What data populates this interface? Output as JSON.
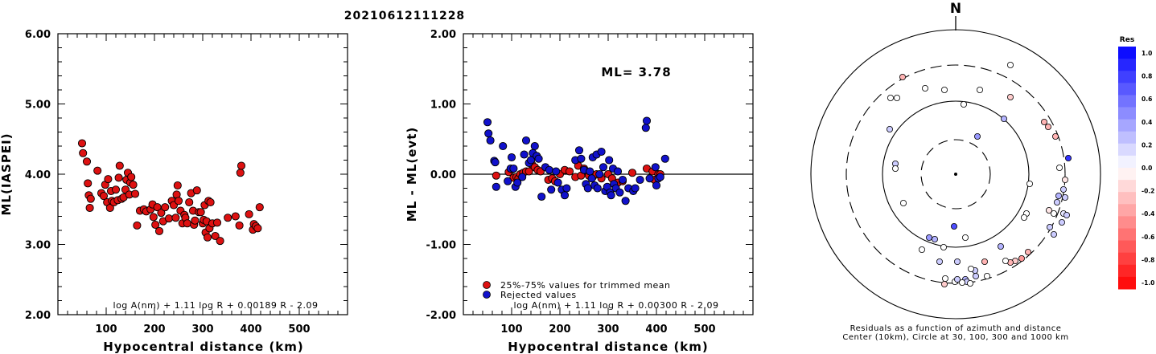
{
  "title": "20210612111228",
  "colors": {
    "accepted": "#dd1111",
    "rejected": "#1111cc",
    "polar_positive": "#0000ee",
    "polar_negative": "#ff0000"
  },
  "chart_data": [
    {
      "type": "scatter",
      "xlabel": "Hypocentral distance (km)",
      "ylabel": "ML(IASPEI)",
      "xlim": [
        0,
        600
      ],
      "ylim": [
        2.0,
        6.0
      ],
      "xticks": [
        "100",
        "200",
        "300",
        "400",
        "500"
      ],
      "yticks": [
        "2.00",
        "3.00",
        "4.00",
        "5.00",
        "6.00"
      ],
      "formula": "log A(nm) + 1.11 log R + 0.00189 R - 2.09",
      "series": [
        {
          "color": "accepted",
          "points": [
            [
              50,
              4.44
            ],
            [
              52,
              4.3
            ],
            [
              60,
              4.18
            ],
            [
              62,
              3.87
            ],
            [
              64,
              3.7
            ],
            [
              66,
              3.52
            ],
            [
              68,
              3.65
            ],
            [
              82,
              4.05
            ],
            [
              90,
              3.73
            ],
            [
              95,
              3.69
            ],
            [
              98,
              3.85
            ],
            [
              102,
              3.6
            ],
            [
              104,
              3.93
            ],
            [
              108,
              3.52
            ],
            [
              110,
              3.76
            ],
            [
              112,
              3.62
            ],
            [
              116,
              3.6
            ],
            [
              120,
              3.78
            ],
            [
              124,
              3.63
            ],
            [
              126,
              3.95
            ],
            [
              128,
              4.12
            ],
            [
              132,
              3.65
            ],
            [
              136,
              3.67
            ],
            [
              140,
              3.78
            ],
            [
              142,
              3.92
            ],
            [
              145,
              4.02
            ],
            [
              148,
              3.71
            ],
            [
              150,
              3.88
            ],
            [
              152,
              3.96
            ],
            [
              156,
              3.85
            ],
            [
              160,
              3.72
            ],
            [
              164,
              3.27
            ],
            [
              170,
              3.48
            ],
            [
              178,
              3.5
            ],
            [
              183,
              3.47
            ],
            [
              192,
              3.5
            ],
            [
              196,
              3.57
            ],
            [
              198,
              3.39
            ],
            [
              202,
              3.28
            ],
            [
              206,
              3.53
            ],
            [
              210,
              3.19
            ],
            [
              214,
              3.45
            ],
            [
              218,
              3.33
            ],
            [
              222,
              3.53
            ],
            [
              230,
              3.37
            ],
            [
              236,
              3.62
            ],
            [
              240,
              3.56
            ],
            [
              244,
              3.38
            ],
            [
              246,
              3.71
            ],
            [
              248,
              3.84
            ],
            [
              250,
              3.62
            ],
            [
              254,
              3.48
            ],
            [
              258,
              3.3
            ],
            [
              262,
              3.42
            ],
            [
              264,
              3.38
            ],
            [
              268,
              3.3
            ],
            [
              272,
              3.6
            ],
            [
              276,
              3.73
            ],
            [
              280,
              3.48
            ],
            [
              282,
              3.28
            ],
            [
              284,
              3.34
            ],
            [
              288,
              3.77
            ],
            [
              292,
              3.46
            ],
            [
              296,
              3.46
            ],
            [
              300,
              3.3
            ],
            [
              302,
              3.35
            ],
            [
              304,
              3.56
            ],
            [
              306,
              3.17
            ],
            [
              308,
              3.33
            ],
            [
              310,
              3.1
            ],
            [
              312,
              3.62
            ],
            [
              314,
              3.23
            ],
            [
              316,
              3.6
            ],
            [
              320,
              3.3
            ],
            [
              326,
              3.12
            ],
            [
              330,
              3.31
            ],
            [
              336,
              3.05
            ],
            [
              352,
              3.38
            ],
            [
              368,
              3.4
            ],
            [
              376,
              3.27
            ],
            [
              378,
              4.02
            ],
            [
              380,
              4.12
            ],
            [
              396,
              3.43
            ],
            [
              404,
              3.21
            ],
            [
              406,
              3.29
            ],
            [
              410,
              3.26
            ],
            [
              414,
              3.23
            ],
            [
              418,
              3.53
            ]
          ]
        }
      ]
    },
    {
      "type": "scatter",
      "xlabel": "Hypocentral distance (km)",
      "ylabel": "ML - ML(evt)",
      "xlim": [
        0,
        600
      ],
      "ylim": [
        -2.0,
        2.0
      ],
      "xticks": [
        "100",
        "200",
        "300",
        "400",
        "500"
      ],
      "yticks": [
        "-2.00",
        "-1.00",
        "0.00",
        "1.00",
        "2.00"
      ],
      "reference_line_y": 0.0,
      "ml_label": "ML= 3.78",
      "legend": [
        "25%-75% values for trimmed mean",
        "Rejected values"
      ],
      "formula": "log A(nm) + 1.11 log R + 0.00300 R - 2.09",
      "series": [
        {
          "name": "25%-75% values for trimmed mean",
          "color": "accepted",
          "points": [
            [
              68,
              -0.02
            ],
            [
              94,
              0.03
            ],
            [
              102,
              0.07
            ],
            [
              104,
              -0.05
            ],
            [
              110,
              -0.04
            ],
            [
              114,
              -0.06
            ],
            [
              118,
              0.0
            ],
            [
              124,
              0.02
            ],
            [
              130,
              0.04
            ],
            [
              136,
              0.04
            ],
            [
              142,
              0.14
            ],
            [
              148,
              0.1
            ],
            [
              154,
              0.06
            ],
            [
              160,
              0.04
            ],
            [
              176,
              -0.08
            ],
            [
              184,
              -0.06
            ],
            [
              190,
              -0.1
            ],
            [
              200,
              0.0
            ],
            [
              210,
              0.06
            ],
            [
              220,
              0.04
            ],
            [
              232,
              -0.04
            ],
            [
              238,
              0.12
            ],
            [
              244,
              -0.02
            ],
            [
              250,
              0.08
            ],
            [
              260,
              -0.02
            ],
            [
              268,
              -0.04
            ],
            [
              276,
              0.0
            ],
            [
              286,
              -0.06
            ],
            [
              300,
              0.0
            ],
            [
              308,
              -0.06
            ],
            [
              320,
              -0.12
            ],
            [
              330,
              -0.1
            ],
            [
              350,
              0.02
            ],
            [
              380,
              0.08
            ],
            [
              392,
              0.04
            ],
            [
              396,
              -0.08
            ],
            [
              404,
              0.0
            ],
            [
              408,
              0.0
            ]
          ]
        },
        {
          "name": "Rejected values",
          "color": "rejected",
          "points": [
            [
              50,
              0.74
            ],
            [
              52,
              0.58
            ],
            [
              56,
              0.48
            ],
            [
              64,
              0.19
            ],
            [
              66,
              0.17
            ],
            [
              68,
              -0.18
            ],
            [
              82,
              0.4
            ],
            [
              92,
              -0.1
            ],
            [
              98,
              0.08
            ],
            [
              100,
              0.24
            ],
            [
              104,
              0.08
            ],
            [
              108,
              -0.18
            ],
            [
              112,
              -0.12
            ],
            [
              122,
              -0.04
            ],
            [
              126,
              0.28
            ],
            [
              130,
              0.48
            ],
            [
              136,
              0.16
            ],
            [
              140,
              0.2
            ],
            [
              144,
              0.3
            ],
            [
              148,
              0.4
            ],
            [
              152,
              0.26
            ],
            [
              156,
              0.22
            ],
            [
              162,
              -0.32
            ],
            [
              170,
              0.1
            ],
            [
              178,
              0.06
            ],
            [
              182,
              -0.22
            ],
            [
              192,
              0.04
            ],
            [
              196,
              -0.12
            ],
            [
              204,
              -0.22
            ],
            [
              210,
              -0.3
            ],
            [
              214,
              -0.2
            ],
            [
              232,
              0.2
            ],
            [
              240,
              0.34
            ],
            [
              244,
              0.22
            ],
            [
              250,
              0.06
            ],
            [
              254,
              -0.14
            ],
            [
              258,
              -0.2
            ],
            [
              262,
              0.04
            ],
            [
              266,
              -0.06
            ],
            [
              268,
              0.24
            ],
            [
              272,
              -0.16
            ],
            [
              276,
              0.28
            ],
            [
              278,
              -0.2
            ],
            [
              282,
              0.0
            ],
            [
              286,
              0.32
            ],
            [
              290,
              0.1
            ],
            [
              294,
              -0.24
            ],
            [
              298,
              -0.18
            ],
            [
              302,
              0.2
            ],
            [
              304,
              -0.26
            ],
            [
              306,
              -0.3
            ],
            [
              310,
              0.08
            ],
            [
              312,
              -0.14
            ],
            [
              316,
              -0.2
            ],
            [
              320,
              0.04
            ],
            [
              324,
              -0.26
            ],
            [
              330,
              -0.08
            ],
            [
              336,
              -0.38
            ],
            [
              342,
              -0.2
            ],
            [
              352,
              -0.24
            ],
            [
              356,
              -0.2
            ],
            [
              366,
              -0.08
            ],
            [
              378,
              0.66
            ],
            [
              380,
              0.76
            ],
            [
              386,
              -0.06
            ],
            [
              398,
              0.1
            ],
            [
              400,
              -0.16
            ],
            [
              404,
              -0.06
            ],
            [
              408,
              -0.04
            ],
            [
              418,
              0.22
            ]
          ]
        }
      ]
    },
    {
      "type": "scatter",
      "subtype": "polar",
      "north_label": "N",
      "caption": [
        "Residuals as a function of azimuth and distance",
        "Center (10km), Circle at 30, 100, 300 and 1000 km"
      ],
      "rings_km": [
        10,
        30,
        100,
        300,
        1000
      ],
      "colorbar": {
        "label": "Res",
        "ticks": [
          "1.0",
          "0.8",
          "0.6",
          "0.4",
          "0.2",
          "0.0",
          "-0.2",
          "-0.4",
          "-0.6",
          "-0.8",
          "-1.0"
        ]
      },
      "points": [
        [
          1256,
          81,
          0.0
        ],
        [
          1122,
          96,
          -0.3
        ],
        [
          1150,
          110,
          0.0
        ],
        [
          1174,
          112,
          0.0
        ],
        [
          1218,
          112,
          0.0
        ],
        [
          1256,
          121,
          -0.2
        ],
        [
          1107,
          122,
          0.0
        ],
        [
          1115,
          122,
          0.0
        ],
        [
          1198,
          130,
          0.0
        ],
        [
          1248,
          148,
          0.3
        ],
        [
          1298,
          152,
          -0.3
        ],
        [
          1303,
          158,
          -0.3
        ],
        [
          1312,
          170,
          -0.3
        ],
        [
          1106,
          161,
          0.2
        ],
        [
          1215,
          170,
          0.4
        ],
        [
          1113,
          204,
          0.2
        ],
        [
          1113,
          210,
          0.0
        ],
        [
          1317,
          209,
          0.0
        ],
        [
          1328,
          197,
          0.8
        ],
        [
          1324,
          224,
          -0.1
        ],
        [
          1322,
          236,
          0.2
        ],
        [
          1280,
          229,
          0.0
        ],
        [
          1316,
          244,
          0.3
        ],
        [
          1324,
          246,
          0.2
        ],
        [
          1314,
          252,
          0.2
        ],
        [
          1304,
          262,
          -0.1
        ],
        [
          1310,
          266,
          0.0
        ],
        [
          1322,
          266,
          0.1
        ],
        [
          1326,
          268,
          0.2
        ],
        [
          1320,
          277,
          0.2
        ],
        [
          1305,
          283,
          0.2
        ],
        [
          1310,
          292,
          0.2
        ],
        [
          1276,
          266,
          0.0
        ],
        [
          1273,
          271,
          0.0
        ],
        [
          1123,
          253,
          0.0
        ],
        [
          1186,
          282,
          0.7
        ],
        [
          1155,
          296,
          0.4
        ],
        [
          1162,
          298,
          0.3
        ],
        [
          1200,
          296,
          0.0
        ],
        [
          1244,
          307,
          0.3
        ],
        [
          1146,
          311,
          0.0
        ],
        [
          1173,
          308,
          0.0
        ],
        [
          1278,
          314,
          -0.3
        ],
        [
          1270,
          322,
          -0.4
        ],
        [
          1262,
          325,
          -0.2
        ],
        [
          1256,
          327,
          -0.3
        ],
        [
          1250,
          325,
          0.0
        ],
        [
          1224,
          326,
          -0.3
        ],
        [
          1168,
          326,
          0.2
        ],
        [
          1190,
          326,
          0.2
        ],
        [
          1212,
          337,
          0.2
        ],
        [
          1207,
          335,
          0.0
        ],
        [
          1227,
          344,
          0.0
        ],
        [
          1213,
          344,
          0.2
        ],
        [
          1200,
          348,
          0.3
        ],
        [
          1202,
          351,
          0.2
        ],
        [
          1206,
          353,
          0.0
        ],
        [
          1175,
          347,
          0.0
        ],
        [
          1187,
          351,
          0.0
        ],
        [
          1174,
          354,
          -0.2
        ],
        [
          1190,
          348,
          0.2
        ],
        [
          1196,
          352,
          0.0
        ]
      ]
    }
  ]
}
